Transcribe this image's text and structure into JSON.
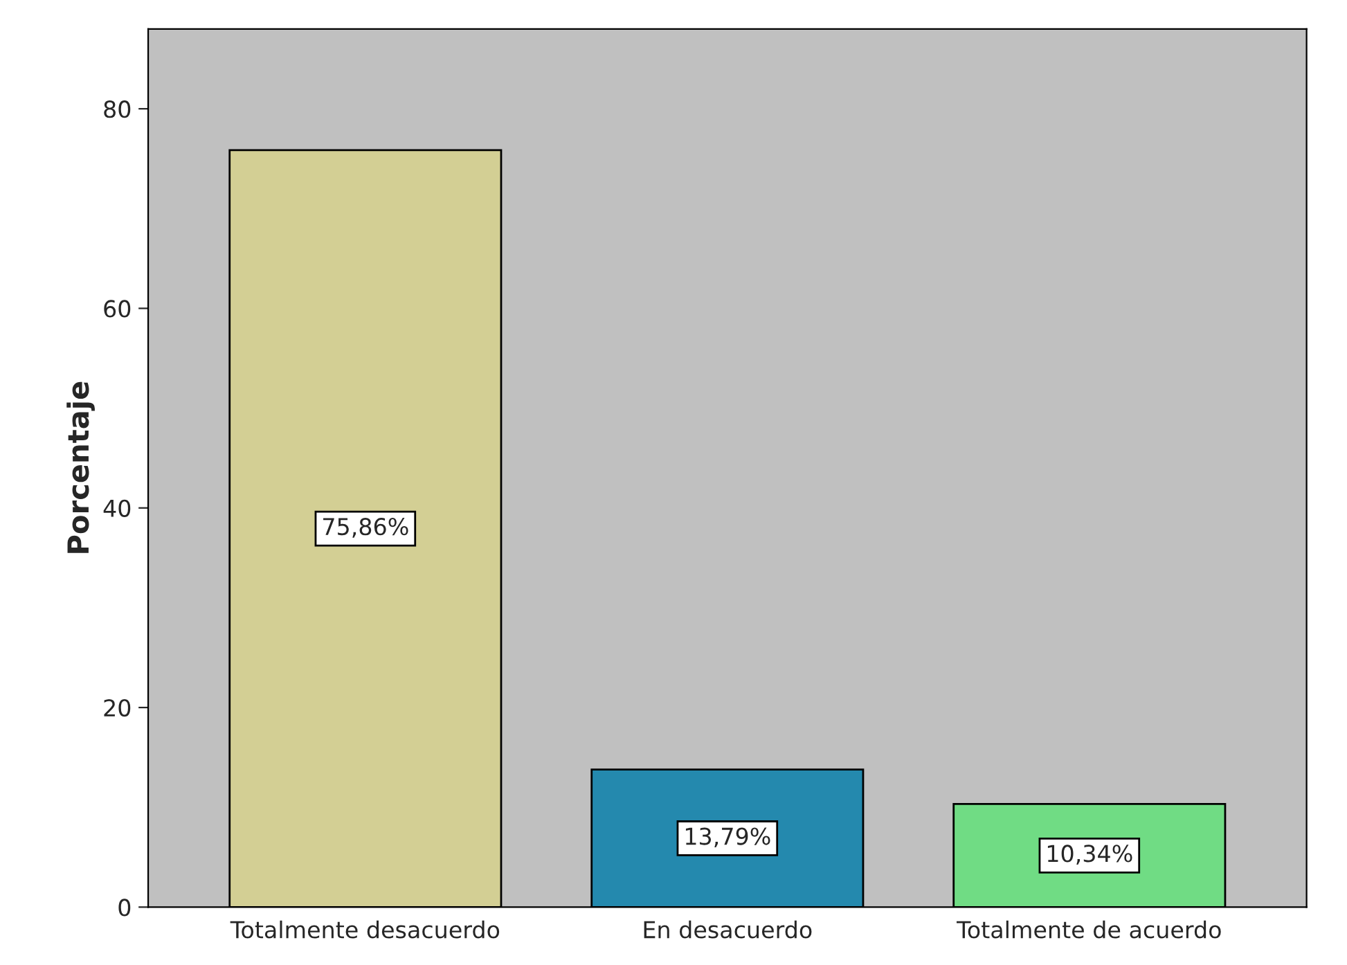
{
  "chart_data": {
    "type": "bar",
    "ylabel": "Porcentaje",
    "categories": [
      "Totalmente desacuerdo",
      "En desacuerdo",
      "Totalmente de acuerdo"
    ],
    "values": [
      75.86,
      13.79,
      10.34
    ],
    "colors": [
      "#d3cf94",
      "#2489ae",
      "#70dc84"
    ],
    "value_labels": [
      "75,86%",
      "13,79%",
      "10,34%"
    ],
    "ylim": [
      0,
      88
    ],
    "yticks": [
      0,
      20,
      40,
      60,
      80
    ],
    "grid": false,
    "legend": false
  }
}
